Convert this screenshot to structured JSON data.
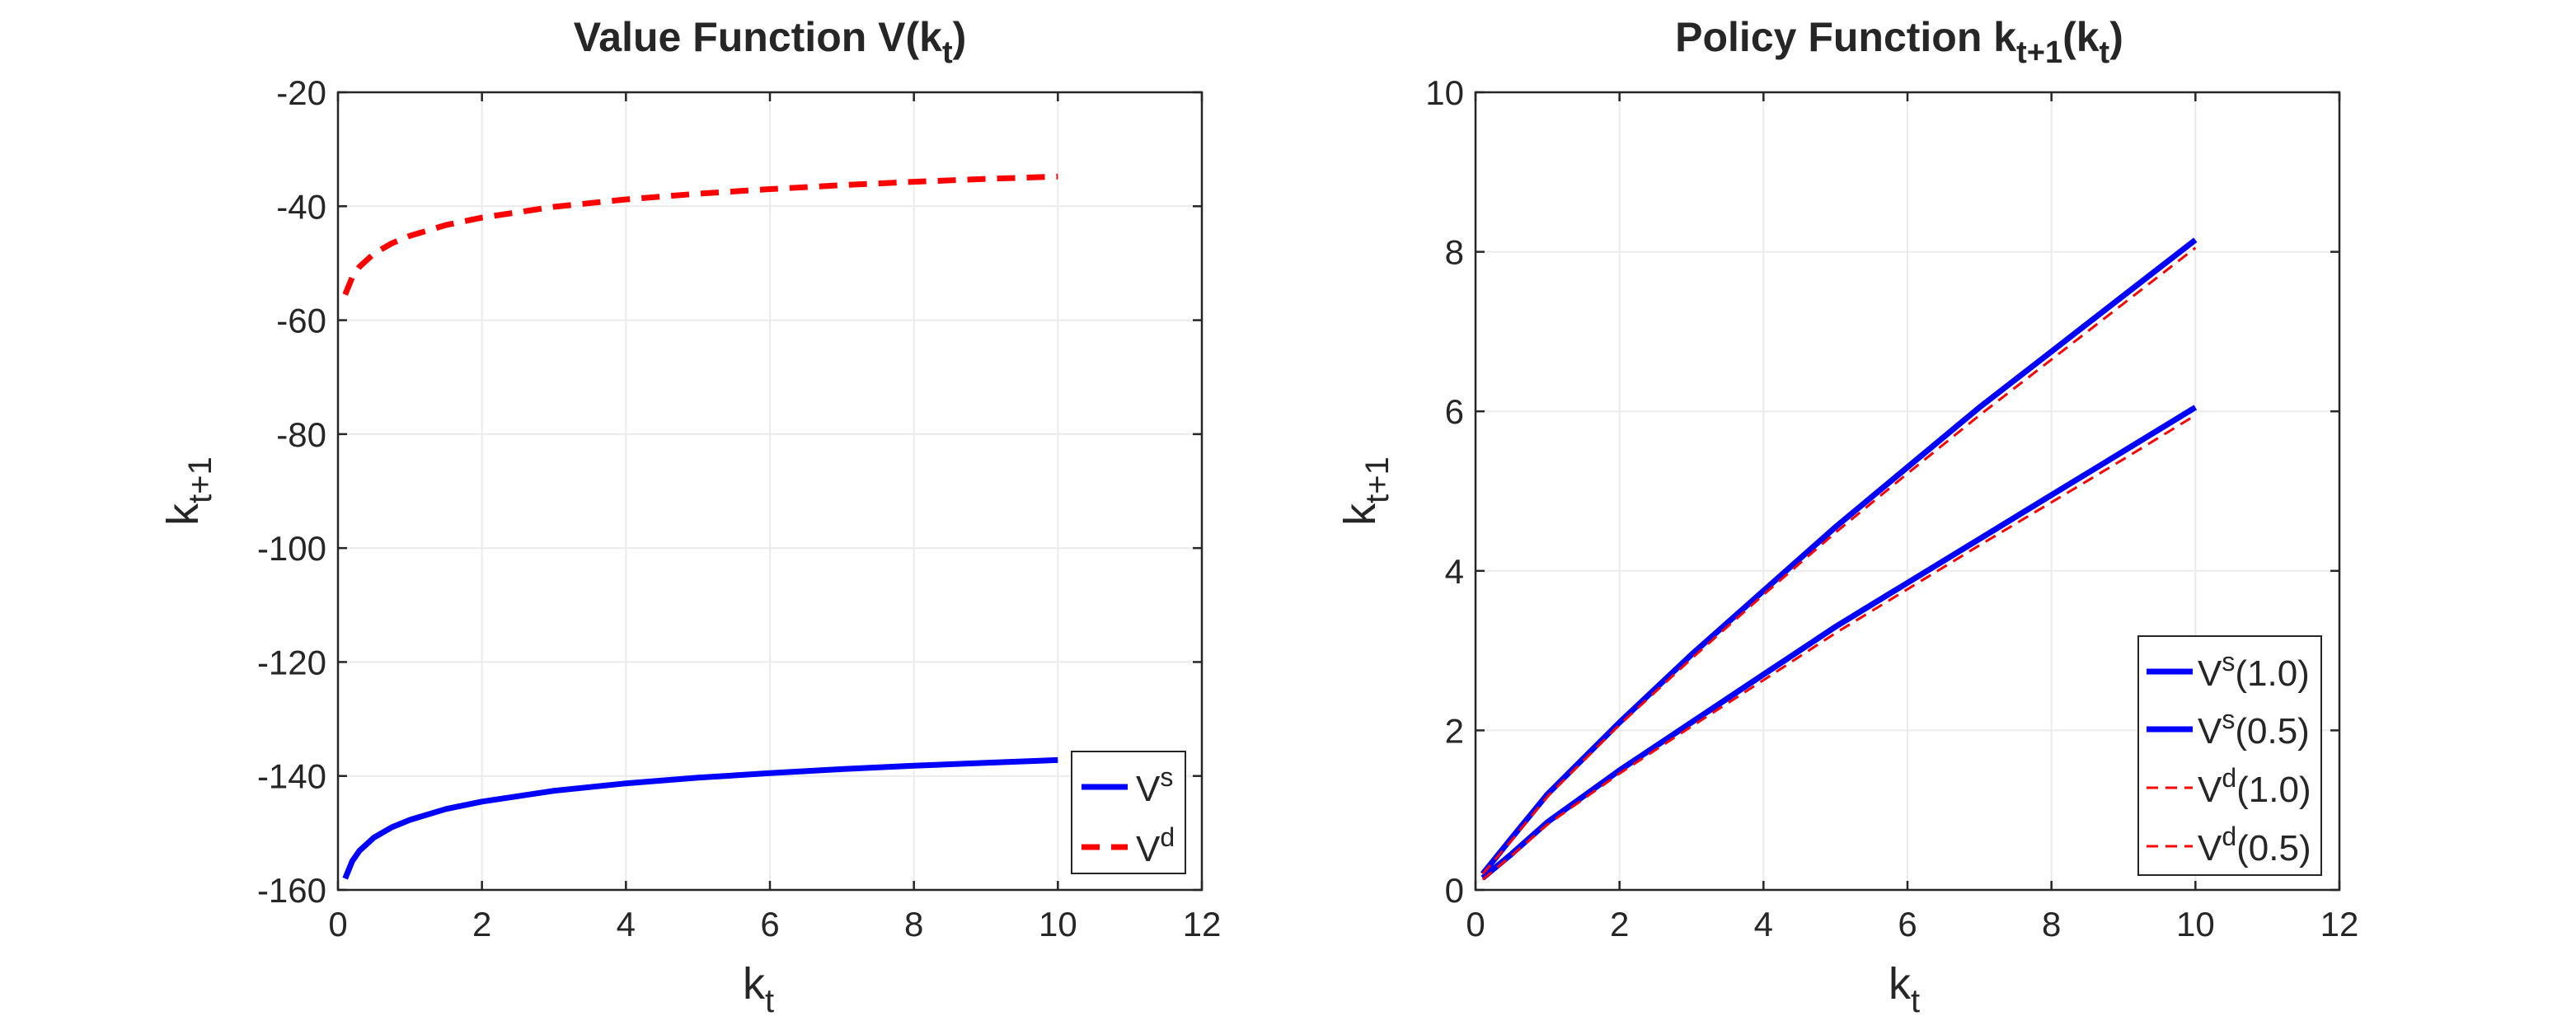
{
  "colors": {
    "vs": "#0000ff",
    "vd": "#ff0000",
    "axis": "#262626",
    "grid": "#ebebeb"
  },
  "chart_data": [
    {
      "type": "line",
      "title": {
        "main": "Value Function V(k",
        "sub": "t",
        "close": ")"
      },
      "xlabel": {
        "main": "k",
        "sub": "t"
      },
      "ylabel": {
        "main": "k",
        "sub": "t+1"
      },
      "xlim": [
        0,
        12
      ],
      "ylim": [
        -160,
        -20
      ],
      "xticks": [
        "0",
        "2",
        "4",
        "6",
        "8",
        "10",
        "12"
      ],
      "yticks": [
        "-160",
        "-140",
        "-120",
        "-100",
        "-80",
        "-60",
        "-40",
        "-20"
      ],
      "grid": true,
      "legend_position": "bottom-right",
      "series": [
        {
          "name": "V",
          "sup": "s",
          "style": "solid",
          "x": [
            0.1,
            0.2,
            0.3,
            0.5,
            0.75,
            1,
            1.5,
            2,
            3,
            4,
            5,
            6,
            7,
            8,
            9,
            10
          ],
          "y": [
            -158,
            -154.9,
            -153.1,
            -150.8,
            -149,
            -147.7,
            -145.8,
            -144.5,
            -142.6,
            -141.3,
            -140.3,
            -139.5,
            -138.8,
            -138.2,
            -137.7,
            -137.2
          ]
        },
        {
          "name": "V",
          "sup": "d",
          "style": "dashed",
          "x": [
            0.1,
            0.2,
            0.3,
            0.5,
            0.75,
            1,
            1.5,
            2,
            3,
            4,
            5,
            6,
            7,
            8,
            9,
            10
          ],
          "y": [
            -55.5,
            -52.4,
            -50.6,
            -48.3,
            -46.5,
            -45.2,
            -43.3,
            -42,
            -40.1,
            -38.8,
            -37.8,
            -37,
            -36.3,
            -35.7,
            -35.2,
            -34.8
          ]
        }
      ]
    },
    {
      "type": "line",
      "title": {
        "main": "Policy Function k",
        "sub": "t+1",
        "mid": "(k",
        "sub2": "t",
        "close": ")"
      },
      "xlabel": {
        "main": "k",
        "sub": "t"
      },
      "ylabel": {
        "main": "k",
        "sub": "t+1"
      },
      "xlim": [
        0,
        12
      ],
      "ylim": [
        0,
        10
      ],
      "xticks": [
        "0",
        "2",
        "4",
        "6",
        "8",
        "10",
        "12"
      ],
      "yticks": [
        "0",
        "2",
        "4",
        "6",
        "8",
        "10"
      ],
      "grid": true,
      "legend_position": "bottom-right",
      "series": [
        {
          "name": "V",
          "sup": "s",
          "paren": "(1.0)",
          "style": "solid",
          "x": [
            0.1,
            0.5,
            1,
            2,
            3,
            4,
            5,
            6,
            7,
            8,
            9,
            10
          ],
          "y": [
            0.2,
            0.65,
            1.2,
            2.1,
            2.95,
            3.75,
            4.55,
            5.3,
            6.05,
            6.75,
            7.45,
            8.15
          ]
        },
        {
          "name": "V",
          "sup": "s",
          "paren": "(0.5)",
          "style": "solid",
          "x": [
            0.1,
            0.5,
            1,
            2,
            3,
            4,
            5,
            6,
            7,
            8,
            9,
            10
          ],
          "y": [
            0.15,
            0.45,
            0.85,
            1.5,
            2.1,
            2.7,
            3.3,
            3.85,
            4.4,
            4.95,
            5.5,
            6.05
          ]
        },
        {
          "name": "V",
          "sup": "d",
          "paren": "(1.0)",
          "style": "dashed",
          "x": [
            0.1,
            0.5,
            1,
            2,
            3,
            4,
            5,
            6,
            7,
            8,
            9,
            10
          ],
          "y": [
            0.2,
            0.62,
            1.17,
            2.07,
            2.9,
            3.7,
            4.48,
            5.22,
            5.95,
            6.65,
            7.35,
            8.05
          ]
        },
        {
          "name": "V",
          "sup": "d",
          "paren": "(0.5)",
          "style": "dashed",
          "x": [
            0.1,
            0.5,
            1,
            2,
            3,
            4,
            5,
            6,
            7,
            8,
            9,
            10
          ],
          "y": [
            0.13,
            0.43,
            0.82,
            1.46,
            2.05,
            2.63,
            3.22,
            3.77,
            4.32,
            4.86,
            5.4,
            5.95
          ]
        }
      ]
    }
  ]
}
